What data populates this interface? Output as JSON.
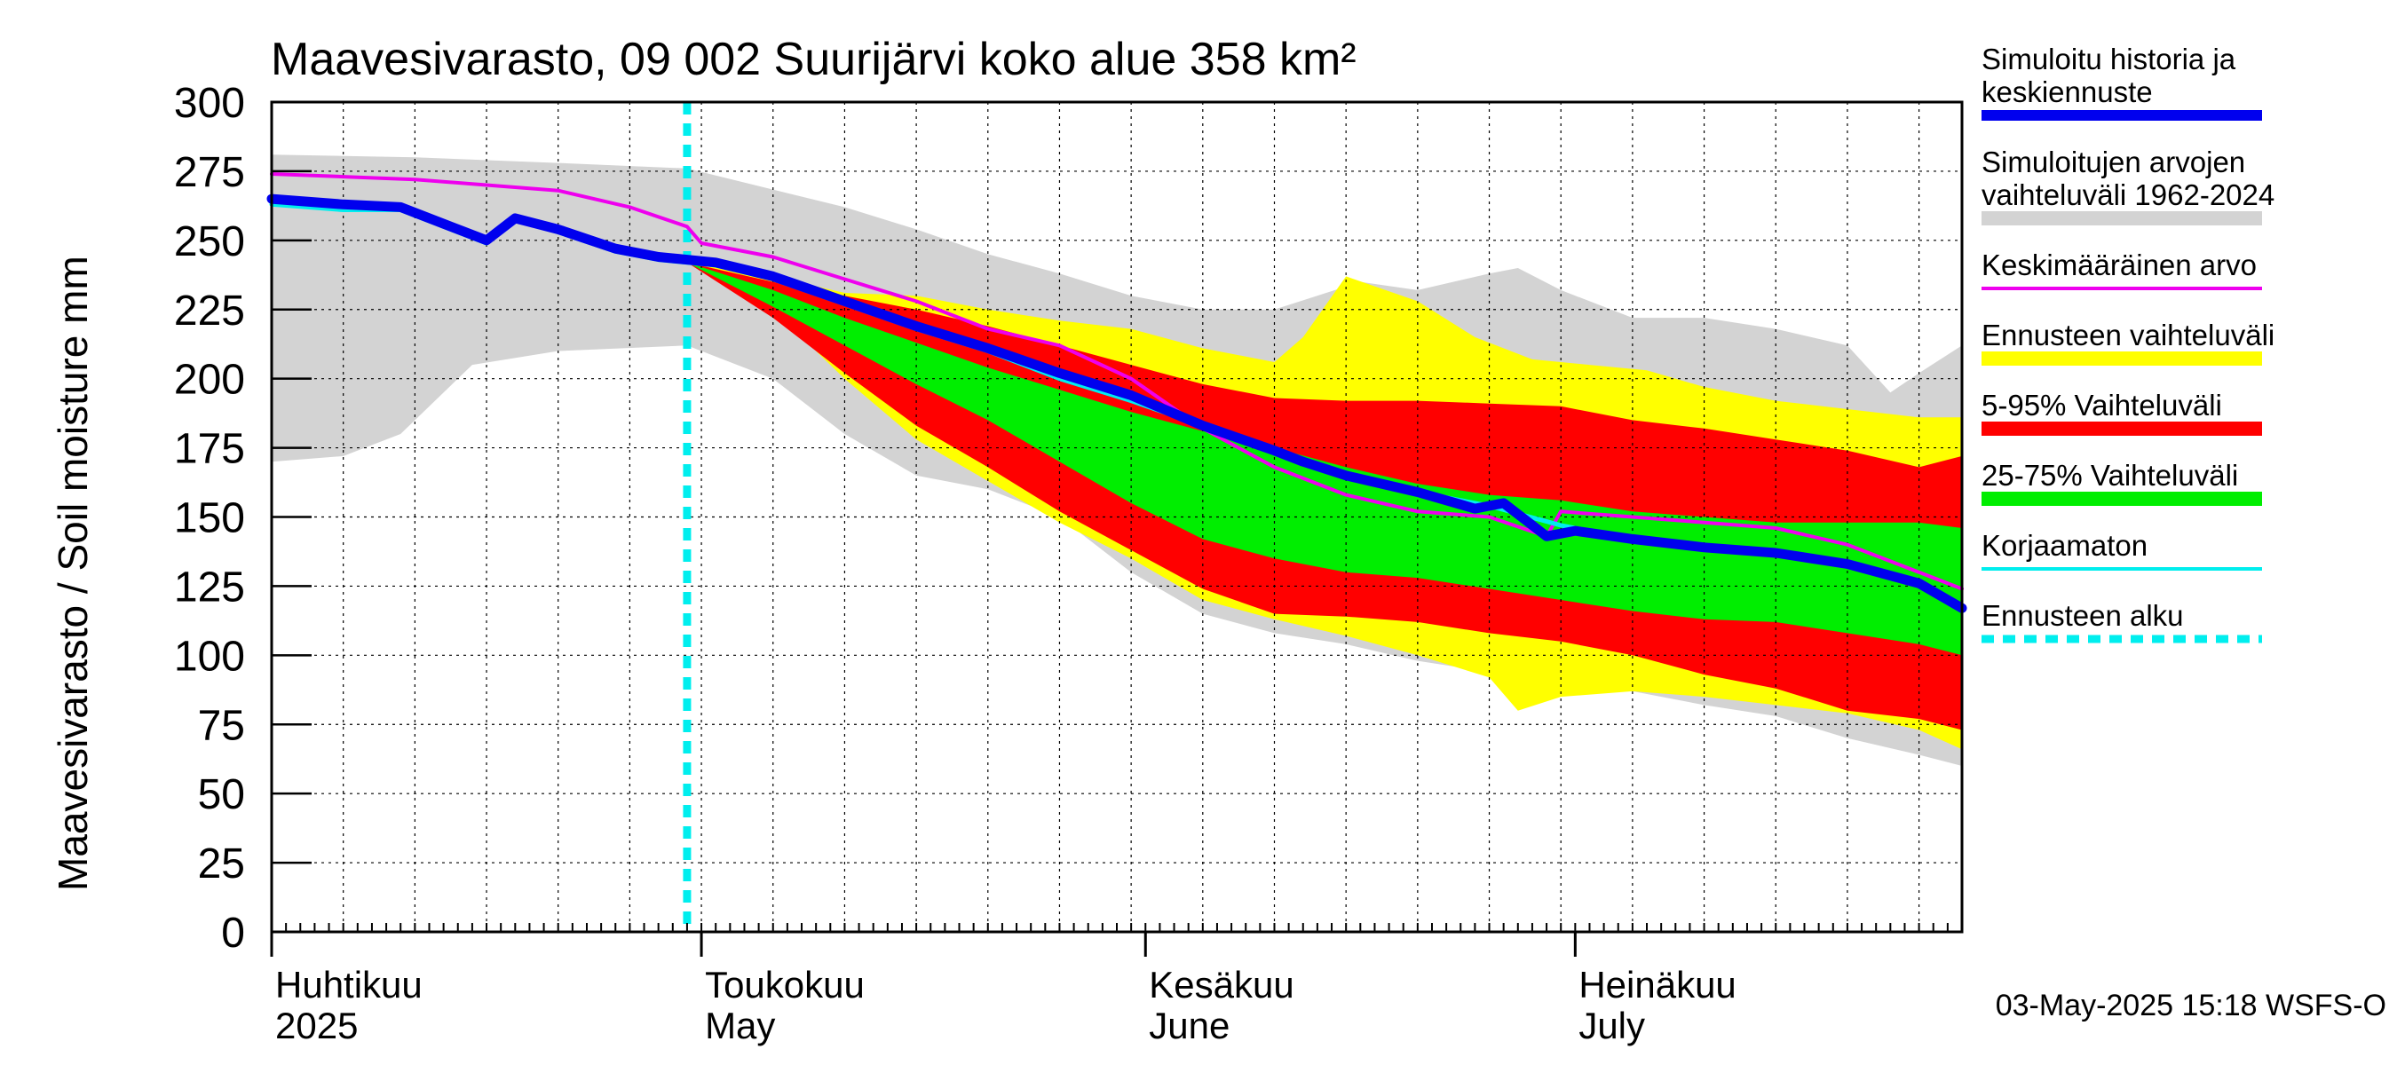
{
  "chart_data": {
    "type": "area",
    "title": "Maavesivarasto, 09 002 Suurijärvi koko alue 358 km²",
    "ylabel": "Maavesivarasto / Soil moisture   mm",
    "xlabel": "",
    "ylim": [
      0,
      300
    ],
    "yticks": [
      0,
      25,
      50,
      75,
      100,
      125,
      150,
      175,
      200,
      225,
      250,
      275,
      300
    ],
    "xlim_days": [
      0,
      118
    ],
    "grid": true,
    "month_labels": [
      {
        "fi": "Huhtikuu",
        "en": "2025",
        "day": 0
      },
      {
        "fi": "Toukokuu",
        "en": "May",
        "day": 30
      },
      {
        "fi": "Kesäkuu",
        "en": "June",
        "day": 61
      },
      {
        "fi": "Heinäkuu",
        "en": "July",
        "day": 91
      }
    ],
    "forecast_start_day": 29,
    "footer": "03-May-2025 15:18 WSFS-O",
    "colors": {
      "history": "#0000ee",
      "range_hist": "#d3d3d3",
      "mean": "#ee00ee",
      "forecast_range": "#ffff00",
      "p5_95": "#ff0000",
      "p25_75": "#00ee00",
      "uncorrected": "#00eeee",
      "forecast_start": "#00eeee"
    },
    "legend": [
      {
        "label": "Simuloitu historia ja keskiennuste",
        "lines": [
          "Simuloitu historia ja",
          "keskiennuste"
        ],
        "key": "history",
        "style": "thick"
      },
      {
        "label": "Simuloitujen arvojen vaihteluväli 1962-2024",
        "lines": [
          "Simuloitujen arvojen",
          "vaihteluväli 1962-2024"
        ],
        "key": "range_hist",
        "style": "band"
      },
      {
        "label": "Keskimääräinen arvo",
        "lines": [
          "Keskimääräinen arvo"
        ],
        "key": "mean",
        "style": "thin"
      },
      {
        "label": "Ennusteen vaihteluväli",
        "lines": [
          "Ennusteen vaihteluväli"
        ],
        "key": "forecast_range",
        "style": "band"
      },
      {
        "label": "5-95% Vaihteluväli",
        "lines": [
          "5-95% Vaihteluväli"
        ],
        "key": "p5_95",
        "style": "band"
      },
      {
        "label": "25-75% Vaihteluväli",
        "lines": [
          "25-75% Vaihteluväli"
        ],
        "key": "p25_75",
        "style": "band"
      },
      {
        "label": "Korjaamaton",
        "lines": [
          "Korjaamaton"
        ],
        "key": "uncorrected",
        "style": "thin"
      },
      {
        "label": "Ennusteen alku",
        "lines": [
          "Ennusteen alku"
        ],
        "key": "forecast_start",
        "style": "dashed"
      }
    ],
    "bands": {
      "hist_upper": [
        [
          0,
          281
        ],
        [
          10,
          280
        ],
        [
          20,
          278
        ],
        [
          29,
          276
        ],
        [
          40,
          262
        ],
        [
          45,
          254
        ],
        [
          50,
          245
        ],
        [
          55,
          238
        ],
        [
          60,
          230
        ],
        [
          65,
          225
        ],
        [
          70,
          225
        ],
        [
          76,
          235
        ],
        [
          80,
          232
        ],
        [
          85,
          238
        ],
        [
          87,
          240
        ],
        [
          90,
          232
        ],
        [
          95,
          222
        ],
        [
          100,
          222
        ],
        [
          105,
          218
        ],
        [
          110,
          212
        ],
        [
          113,
          195
        ],
        [
          115,
          202
        ],
        [
          118,
          212
        ]
      ],
      "hist_lower": [
        [
          0,
          170
        ],
        [
          5,
          172
        ],
        [
          9,
          180
        ],
        [
          14,
          205
        ],
        [
          20,
          210
        ],
        [
          29,
          212
        ],
        [
          35,
          200
        ],
        [
          40,
          180
        ],
        [
          45,
          165
        ],
        [
          50,
          160
        ],
        [
          55,
          150
        ],
        [
          60,
          130
        ],
        [
          65,
          115
        ],
        [
          70,
          108
        ],
        [
          75,
          104
        ],
        [
          80,
          98
        ],
        [
          85,
          94
        ],
        [
          90,
          90
        ],
        [
          95,
          87
        ],
        [
          100,
          82
        ],
        [
          105,
          78
        ],
        [
          110,
          70
        ],
        [
          115,
          64
        ],
        [
          118,
          60
        ]
      ],
      "fc_upper": [
        [
          29,
          242
        ],
        [
          35,
          237
        ],
        [
          40,
          231
        ],
        [
          45,
          230
        ],
        [
          50,
          225
        ],
        [
          55,
          221
        ],
        [
          60,
          218
        ],
        [
          65,
          211
        ],
        [
          70,
          206
        ],
        [
          72,
          215
        ],
        [
          75,
          237
        ],
        [
          80,
          228
        ],
        [
          84,
          215
        ],
        [
          88,
          207
        ],
        [
          92,
          205
        ],
        [
          96,
          203
        ],
        [
          100,
          197
        ],
        [
          105,
          192
        ],
        [
          110,
          189
        ],
        [
          115,
          186
        ],
        [
          118,
          186
        ]
      ],
      "fc_lower": [
        [
          29,
          242
        ],
        [
          35,
          225
        ],
        [
          40,
          200
        ],
        [
          45,
          178
        ],
        [
          50,
          163
        ],
        [
          55,
          148
        ],
        [
          60,
          135
        ],
        [
          65,
          120
        ],
        [
          70,
          113
        ],
        [
          75,
          107
        ],
        [
          80,
          100
        ],
        [
          85,
          92
        ],
        [
          87,
          80
        ],
        [
          90,
          85
        ],
        [
          95,
          87
        ],
        [
          100,
          85
        ],
        [
          105,
          82
        ],
        [
          110,
          79
        ],
        [
          115,
          73
        ],
        [
          118,
          66
        ]
      ],
      "p95": [
        [
          29,
          242
        ],
        [
          35,
          235
        ],
        [
          40,
          230
        ],
        [
          45,
          225
        ],
        [
          50,
          219
        ],
        [
          55,
          212
        ],
        [
          60,
          205
        ],
        [
          65,
          198
        ],
        [
          70,
          193
        ],
        [
          75,
          192
        ],
        [
          80,
          192
        ],
        [
          85,
          191
        ],
        [
          90,
          190
        ],
        [
          95,
          185
        ],
        [
          100,
          182
        ],
        [
          105,
          178
        ],
        [
          110,
          174
        ],
        [
          115,
          168
        ],
        [
          118,
          172
        ]
      ],
      "p5": [
        [
          29,
          242
        ],
        [
          35,
          222
        ],
        [
          40,
          202
        ],
        [
          45,
          183
        ],
        [
          50,
          168
        ],
        [
          55,
          152
        ],
        [
          60,
          138
        ],
        [
          65,
          124
        ],
        [
          70,
          115
        ],
        [
          75,
          114
        ],
        [
          80,
          112
        ],
        [
          85,
          108
        ],
        [
          90,
          105
        ],
        [
          95,
          100
        ],
        [
          100,
          93
        ],
        [
          105,
          88
        ],
        [
          110,
          80
        ],
        [
          115,
          77
        ],
        [
          118,
          73
        ]
      ],
      "p75": [
        [
          29,
          242
        ],
        [
          35,
          232
        ],
        [
          40,
          222
        ],
        [
          45,
          213
        ],
        [
          50,
          204
        ],
        [
          55,
          196
        ],
        [
          60,
          188
        ],
        [
          65,
          181
        ],
        [
          70,
          175
        ],
        [
          75,
          168
        ],
        [
          80,
          162
        ],
        [
          85,
          158
        ],
        [
          90,
          156
        ],
        [
          95,
          152
        ],
        [
          100,
          150
        ],
        [
          105,
          148
        ],
        [
          110,
          148
        ],
        [
          115,
          148
        ],
        [
          118,
          146
        ]
      ],
      "p25": [
        [
          29,
          242
        ],
        [
          35,
          226
        ],
        [
          40,
          212
        ],
        [
          45,
          198
        ],
        [
          50,
          185
        ],
        [
          55,
          170
        ],
        [
          60,
          155
        ],
        [
          65,
          142
        ],
        [
          70,
          135
        ],
        [
          75,
          130
        ],
        [
          80,
          128
        ],
        [
          85,
          124
        ],
        [
          90,
          120
        ],
        [
          95,
          116
        ],
        [
          100,
          113
        ],
        [
          105,
          112
        ],
        [
          110,
          108
        ],
        [
          115,
          104
        ],
        [
          118,
          100
        ]
      ]
    },
    "series": [
      {
        "name": "Keskimääräinen arvo",
        "key": "mean",
        "points": [
          [
            0,
            274
          ],
          [
            5,
            273
          ],
          [
            10,
            272
          ],
          [
            15,
            270
          ],
          [
            20,
            268
          ],
          [
            25,
            262
          ],
          [
            29,
            255
          ],
          [
            30,
            249
          ],
          [
            35,
            244
          ],
          [
            40,
            236
          ],
          [
            45,
            228
          ],
          [
            50,
            218
          ],
          [
            55,
            212
          ],
          [
            60,
            200
          ],
          [
            65,
            182
          ],
          [
            70,
            168
          ],
          [
            75,
            158
          ],
          [
            80,
            152
          ],
          [
            85,
            150
          ],
          [
            89,
            143
          ],
          [
            90,
            152
          ],
          [
            95,
            150
          ],
          [
            100,
            148
          ],
          [
            105,
            146
          ],
          [
            110,
            140
          ],
          [
            115,
            130
          ],
          [
            118,
            124
          ]
        ]
      },
      {
        "name": "Korjaamaton",
        "key": "uncorrected",
        "points": [
          [
            0,
            263
          ],
          [
            5,
            261
          ],
          [
            9,
            261
          ],
          [
            12,
            255
          ],
          [
            15,
            249
          ],
          [
            17,
            258
          ],
          [
            20,
            253
          ],
          [
            24,
            246
          ],
          [
            27,
            243
          ],
          [
            29,
            242
          ],
          [
            31,
            241
          ],
          [
            35,
            236
          ],
          [
            40,
            227
          ],
          [
            45,
            218
          ],
          [
            50,
            210
          ],
          [
            55,
            200
          ],
          [
            60,
            192
          ],
          [
            65,
            183
          ],
          [
            70,
            173
          ],
          [
            75,
            165
          ],
          [
            80,
            159
          ],
          [
            85,
            154
          ],
          [
            90,
            147
          ],
          [
            95,
            142
          ],
          [
            100,
            139
          ],
          [
            105,
            137
          ],
          [
            110,
            133
          ],
          [
            115,
            126
          ],
          [
            118,
            117
          ]
        ]
      },
      {
        "name": "Simuloitu historia ja keskiennuste",
        "key": "history",
        "points": [
          [
            0,
            265
          ],
          [
            5,
            263
          ],
          [
            9,
            262
          ],
          [
            12,
            256
          ],
          [
            15,
            250
          ],
          [
            17,
            258
          ],
          [
            20,
            254
          ],
          [
            24,
            247
          ],
          [
            27,
            244
          ],
          [
            29,
            243
          ],
          [
            31,
            242
          ],
          [
            35,
            237
          ],
          [
            40,
            228
          ],
          [
            45,
            219
          ],
          [
            50,
            211
          ],
          [
            55,
            202
          ],
          [
            60,
            194
          ],
          [
            65,
            183
          ],
          [
            70,
            174
          ],
          [
            72,
            170
          ],
          [
            75,
            165
          ],
          [
            80,
            159
          ],
          [
            84,
            153
          ],
          [
            86,
            155
          ],
          [
            89,
            143
          ],
          [
            91,
            145
          ],
          [
            95,
            142
          ],
          [
            100,
            139
          ],
          [
            105,
            137
          ],
          [
            110,
            133
          ],
          [
            115,
            126
          ],
          [
            118,
            117
          ]
        ]
      }
    ]
  }
}
